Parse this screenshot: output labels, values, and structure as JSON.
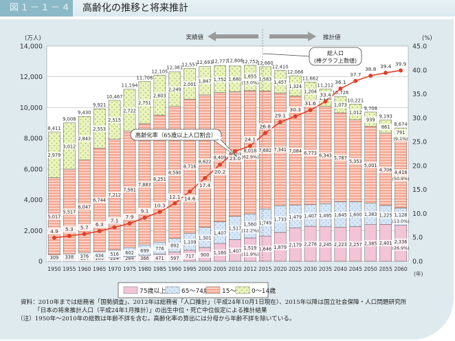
{
  "header": {
    "figure_number": "図１－１－４",
    "title": "高齢化の推移と将来推計"
  },
  "chart_data": {
    "type": "bar",
    "stacked": true,
    "title": "高齢化の推移と将来推計",
    "categories": [
      "1950",
      "1955",
      "1960",
      "1965",
      "1970",
      "1975",
      "1980",
      "1985",
      "1990",
      "1995",
      "2000",
      "2005",
      "2010",
      "2012",
      "2015",
      "2020",
      "2025",
      "2030",
      "2035",
      "2040",
      "2045",
      "2050",
      "2055",
      "2060"
    ],
    "x_unit": "(年)",
    "ylabel": "(万人)",
    "ylim": [
      0,
      14000
    ],
    "yticks": [
      "0",
      "2,000",
      "4,000",
      "6,000",
      "8,000",
      "10,000",
      "12,000",
      "14,000"
    ],
    "y2label": "(%)",
    "y2lim": [
      0,
      45
    ],
    "y2ticks": [
      "0.0",
      "5.0",
      "10.0",
      "15.0",
      "20.0",
      "25.0",
      "30.0",
      "35.0",
      "40.0",
      "45.0"
    ],
    "grid": true,
    "series": [
      {
        "name": "75歳以上",
        "color": "#f2c4d6",
        "values": [
          107,
          139,
          164,
          189,
          224,
          284,
          366,
          471,
          597,
          717,
          900,
          1160,
          1407,
          1519,
          1646,
          1879,
          2179,
          2278,
          2245,
          2223,
          2257,
          2385,
          2401,
          2336
        ],
        "labels": [
          "107",
          "139",
          "164",
          "189",
          "224",
          "284",
          "366",
          "471",
          "597",
          "717",
          "900",
          "1,160",
          "1,407",
          "1,519",
          "1,646",
          "1,879",
          "2,179",
          "2,278",
          "2,245",
          "2,223",
          "2,257",
          "2,385",
          "2,401",
          "2,336"
        ],
        "pct_labels": {
          "2012": "(11.9%)",
          "2060": "(26.9%)"
        }
      },
      {
        "name": "65～74歳",
        "color": "#d3e4f5",
        "values": [
          309,
          338,
          376,
          434,
          516,
          602,
          699,
          776,
          892,
          1109,
          1301,
          1407,
          1517,
          1560,
          1749,
          1733,
          1479,
          1407,
          1495,
          1645,
          1600,
          1383,
          1225,
          1128
        ],
        "labels": [
          "309",
          "338",
          "376",
          "434",
          "516",
          "602",
          "699",
          "776",
          "892",
          "1,109",
          "1,301",
          "1,407",
          "1,517",
          "1,560",
          "1,749",
          "1,733",
          "1,479",
          "1,407",
          "1,495",
          "1,645",
          "1,600",
          "1,383",
          "1,225",
          "1,128"
        ],
        "pct_labels": {
          "2012": "(12.2%)",
          "2060": "(13.0%)"
        }
      },
      {
        "name": "15～64歳",
        "color": "#f4a791",
        "values": [
          5017,
          5517,
          6047,
          6744,
          7212,
          7581,
          7883,
          8251,
          8590,
          8716,
          8622,
          8409,
          8103,
          8018,
          7682,
          7341,
          7084,
          6773,
          6343,
          5787,
          5353,
          5001,
          4706,
          4418
        ],
        "labels": [
          "5,017",
          "5,517",
          "6,047",
          "6,744",
          "7,212",
          "7,581",
          "7,883",
          "8,251",
          "8,590",
          "8,716",
          "8,622",
          "8,409",
          "8,103",
          "8,018",
          "7,682",
          "7,341",
          "7,084",
          "6,773",
          "6,343",
          "5,787",
          "5,353",
          "5,001",
          "4,706",
          "4,418"
        ],
        "pct_labels": {
          "2012": "(62.9%)",
          "2060": "(50.9%)"
        }
      },
      {
        "name": "0～14歳",
        "color": "#e8f2b8",
        "values": [
          2979,
          3012,
          2843,
          2553,
          2515,
          2722,
          2751,
          2603,
          2249,
          2001,
          1847,
          1752,
          1680,
          1655,
          1583,
          1457,
          1324,
          1204,
          1129,
          1073,
          1012,
          939,
          861,
          791
        ],
        "labels": [
          "2,979",
          "3,012",
          "2,843",
          "2,553",
          "2,515",
          "2,722",
          "2,751",
          "2,603",
          "2,249",
          "2,001",
          "1,847",
          "1,752",
          "1,680",
          "1,655",
          "1,583",
          "1,457",
          "1,324",
          "1,204",
          "1,129",
          "1,073",
          "1,012",
          "939",
          "861",
          "791"
        ],
        "pct_labels": {
          "2012": "(13.0%)",
          "2060": "(9.1%)"
        }
      }
    ],
    "totals": [
      8411,
      9008,
      9430,
      9921,
      10467,
      11194,
      11706,
      12105,
      12361,
      12557,
      12693,
      12777,
      12806,
      12752,
      12660,
      12410,
      12066,
      11662,
      11212,
      10728,
      10221,
      9708,
      9193,
      8674
    ],
    "total_labels": [
      "8,411",
      "9,008",
      "9,430",
      "9,921",
      "10,467",
      "11,194",
      "11,706",
      "12,105",
      "12,361",
      "12,557",
      "12,693",
      "12,777",
      "12,806",
      "12,752",
      "12,660",
      "12,410",
      "12,066",
      "11,662",
      "11,212",
      "10,728",
      "10,221",
      "9,708",
      "9,193",
      "8,674"
    ],
    "line": {
      "name": "高齢化率（65歳以上人口割合）",
      "color": "#e0402a",
      "axis": "right",
      "values": [
        4.9,
        5.3,
        5.7,
        6.3,
        7.1,
        7.9,
        9.1,
        10.3,
        12.1,
        14.6,
        17.4,
        20.2,
        23.0,
        24.1,
        26.8,
        29.1,
        30.3,
        31.6,
        33.4,
        36.1,
        37.7,
        38.8,
        39.4,
        39.9
      ],
      "labels": [
        "4.9",
        "5.3",
        "5.7",
        "6.3",
        "7.1",
        "7.9",
        "9.1",
        "10.3",
        "12.1",
        "14.6",
        "17.4",
        "20.2",
        "23.0",
        "24.1",
        "26.8",
        "29.1",
        "30.3",
        "31.6",
        "33.4",
        "36.1",
        "37.7",
        "38.8",
        "39.4",
        "39.9"
      ]
    },
    "annotations": {
      "actual": "実績値",
      "projected": "推計値",
      "total_callout_line1": "総人口",
      "total_callout_line2": "(棒グラフ上数値)",
      "rate_callout": "高齢化率（65歳以上人口割合）"
    },
    "legend": {
      "placement": "bottom-center",
      "items": [
        "75歳以上",
        "65～74歳",
        "15～64歳",
        "0～14歳"
      ]
    }
  },
  "notes": {
    "source_line1": "資料：2010年までは総務省「国勢調査」、2012年は総務省「人口推計」（平成24年10月1日現在）、2015年以降は国立社会保障・人口問題研究所",
    "source_line2": "「日本の将来推計人口（平成24年1月推計）」の出生中位・死亡中位仮定による推計結果",
    "note_line": "（注）1950年～2010年の総数は年齢不詳を含む。高齢化率の算出には分母から年齢不詳を除いている。"
  }
}
